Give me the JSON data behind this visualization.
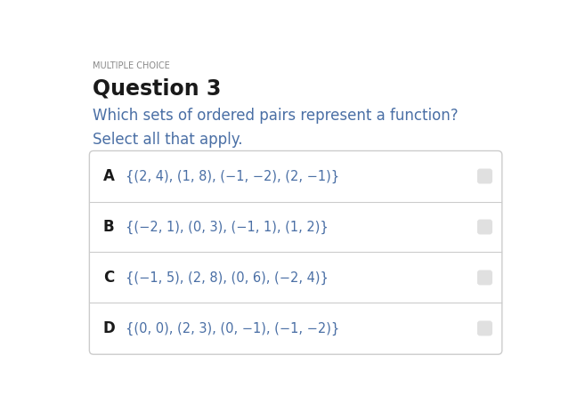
{
  "multiple_choice_label": "MULTIPLE CHOICE",
  "question_label": "Question 3",
  "question_text": "Which sets of ordered pairs represent a function?",
  "select_text": "Select all that apply.",
  "options": [
    {
      "letter": "A",
      "text": "{(2, 4), (1, 8), (−1, −2), (2, −1)}"
    },
    {
      "letter": "B",
      "text": "{(−2, 1), (0, 3), (−1, 1), (1, 2)}"
    },
    {
      "letter": "C",
      "text": "{(−1, 5), (2, 8), (0, 6), (−2, 4)}"
    },
    {
      "letter": "D",
      "text": "{(0, 0), (2, 3), (0, −1), (−1, −2)}"
    }
  ],
  "bg_color": "#ffffff",
  "box_bg_color": "#ffffff",
  "box_border_color": "#cccccc",
  "option_box_bg": "#e0e0e0",
  "multiple_choice_color": "#888888",
  "question_label_color": "#1a1a1a",
  "question_text_color": "#4a6fa5",
  "select_text_color": "#4a6fa5",
  "letter_color": "#1a1a1a",
  "option_text_color": "#4a6fa5",
  "divider_color": "#cccccc"
}
